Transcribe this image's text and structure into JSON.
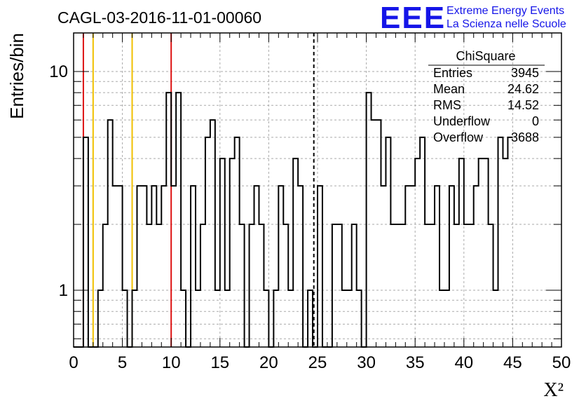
{
  "header": {
    "run_title": "CAGL-03-2016-11-01-00060",
    "logo_text": "EEE",
    "logo_line1": "Extreme Energy Events",
    "logo_line2": "La Scienza nelle Scuole"
  },
  "stats": {
    "title": "ChiSquare",
    "rows": [
      {
        "label": "Entries",
        "value": "3945"
      },
      {
        "label": "Mean",
        "value": "24.62"
      },
      {
        "label": "RMS",
        "value": "14.52"
      },
      {
        "label": "Underflow",
        "value": "0"
      },
      {
        "label": "Overflow",
        "value": "3688"
      }
    ]
  },
  "colors": {
    "histogram": "#000000",
    "grid": "#aaaaaa",
    "red_line": "#dd1111",
    "yellow_line": "#f0c000",
    "mean_line": "#000000",
    "logo_blue": "#1515e8"
  },
  "chart_data": {
    "type": "bar",
    "histogram": true,
    "ylabel": "Entries/bin",
    "xlabel": "X²",
    "xlim": [
      0,
      50
    ],
    "ylim": [
      0.55,
      15
    ],
    "yscale": "log",
    "grid": true,
    "bin_width": 0.5,
    "x_tick_labels": [
      "0",
      "5",
      "10",
      "15",
      "20",
      "25",
      "30",
      "35",
      "40",
      "45",
      "50"
    ],
    "y_tick_labels": [
      "1",
      "10"
    ],
    "red_lines_x": [
      1.0,
      10.0
    ],
    "yellow_lines_x": [
      2.0,
      6.0
    ],
    "mean_line_x": 24.62,
    "values": [
      0,
      0,
      5,
      0,
      0,
      1,
      2,
      6,
      3,
      3,
      1,
      0,
      1,
      3,
      3,
      2,
      3,
      2,
      3,
      8,
      3,
      8,
      1,
      0,
      3,
      1,
      2,
      5,
      6,
      1,
      4,
      1,
      4,
      5,
      2,
      0,
      2,
      3,
      2,
      1,
      0,
      1,
      3,
      2,
      1,
      4,
      3,
      0,
      1,
      0,
      3,
      0,
      0,
      2,
      2,
      1,
      1,
      2,
      1,
      0,
      8,
      6,
      6,
      3,
      5,
      2,
      2,
      2,
      3,
      3,
      4,
      5,
      2,
      2,
      3,
      1,
      1,
      3,
      2,
      4,
      2,
      2,
      3,
      4,
      4,
      2,
      1,
      5,
      4,
      5
    ]
  }
}
